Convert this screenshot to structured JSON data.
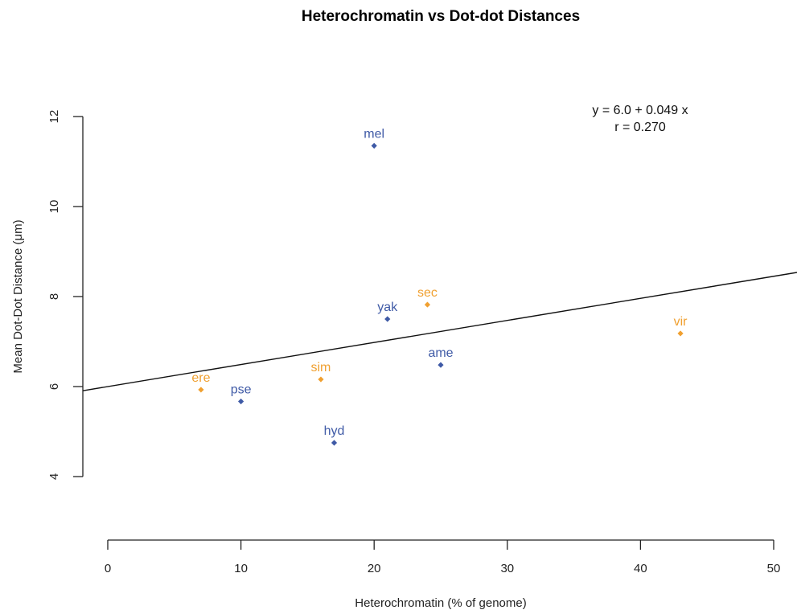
{
  "chart_data": {
    "type": "scatter",
    "title": "Heterochromatin vs Dot-dot Distances",
    "xlabel": "Heterochromatin (% of genome)",
    "ylabel": "Mean Dot-Dot Distance (μm)",
    "xlim": [
      0,
      50
    ],
    "ylim": [
      4,
      12
    ],
    "x_ticks": [
      0,
      10,
      20,
      30,
      40,
      50
    ],
    "y_ticks": [
      4,
      6,
      8,
      10,
      12
    ],
    "colors": {
      "blue": "#3f5aa6",
      "orange": "#f0a030",
      "line": "#111111"
    },
    "points": [
      {
        "label": "mel",
        "x": 20,
        "y": 11.35,
        "color": "blue"
      },
      {
        "label": "yak",
        "x": 21,
        "y": 7.5,
        "color": "blue"
      },
      {
        "label": "sec",
        "x": 24,
        "y": 7.82,
        "color": "orange"
      },
      {
        "label": "vir",
        "x": 43,
        "y": 7.18,
        "color": "orange"
      },
      {
        "label": "ame",
        "x": 25,
        "y": 6.48,
        "color": "blue"
      },
      {
        "label": "sim",
        "x": 16,
        "y": 6.16,
        "color": "orange"
      },
      {
        "label": "ere",
        "x": 7,
        "y": 5.93,
        "color": "orange"
      },
      {
        "label": "pse",
        "x": 10,
        "y": 5.67,
        "color": "blue"
      },
      {
        "label": "hyd",
        "x": 17,
        "y": 4.75,
        "color": "blue"
      }
    ],
    "regression": {
      "intercept": 6.0,
      "slope": 0.049
    },
    "annotation": {
      "equation": "y = 6.0 + 0.049 x",
      "r": "r = 0.270"
    }
  }
}
